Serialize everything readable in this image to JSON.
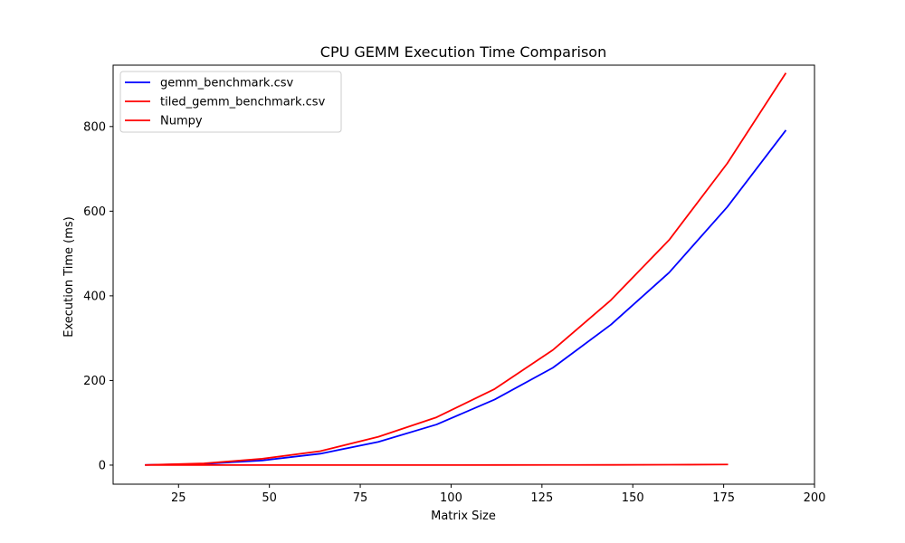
{
  "chart_data": {
    "type": "line",
    "title": "CPU GEMM Execution Time Comparison",
    "xlabel": "Matrix Size",
    "ylabel": "Execution Time (ms)",
    "xlim": [
      7,
      200
    ],
    "ylim": [
      -45,
      945
    ],
    "xticks": [
      25,
      50,
      75,
      100,
      125,
      150,
      175,
      200
    ],
    "yticks": [
      0,
      200,
      400,
      600,
      800
    ],
    "grid": false,
    "legend_position": "top-left",
    "series": [
      {
        "name": "gemm_benchmark.csv",
        "color": "#0000ff",
        "x": [
          16,
          32,
          48,
          64,
          80,
          96,
          112,
          128,
          144,
          160,
          176,
          192
        ],
        "y": [
          0.5,
          3,
          11,
          27,
          55,
          96,
          155,
          230,
          332,
          455,
          610,
          790
        ]
      },
      {
        "name": "tiled_gemm_benchmark.csv",
        "color": "#ff0000",
        "x": [
          16,
          32,
          48,
          64,
          80,
          96,
          112,
          128,
          144,
          160,
          176,
          192
        ],
        "y": [
          0.5,
          4,
          15,
          33,
          67,
          113,
          180,
          272,
          390,
          532,
          713,
          925
        ]
      },
      {
        "name": "Numpy",
        "color": "#ff0000",
        "x": [
          16,
          32,
          48,
          64,
          80,
          96,
          112,
          128,
          144,
          160,
          176
        ],
        "y": [
          0.1,
          0.1,
          0.1,
          0.1,
          0.2,
          0.2,
          0.3,
          0.4,
          0.6,
          0.9,
          1.5
        ]
      }
    ]
  }
}
